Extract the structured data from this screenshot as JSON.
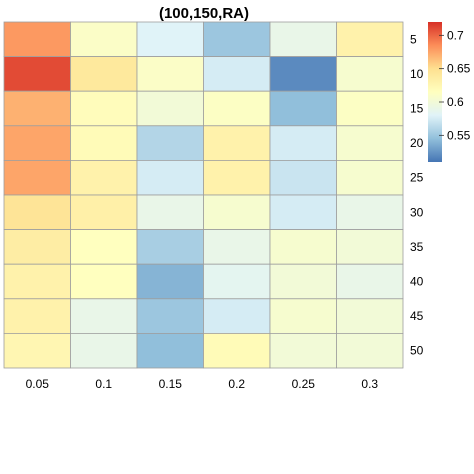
{
  "chart_data": {
    "type": "heatmap",
    "title": "(100,150,RA)",
    "x_categories": [
      "0.05",
      "0.1",
      "0.15",
      "0.2",
      "0.25",
      "0.3"
    ],
    "y_categories": [
      "5",
      "10",
      "15",
      "20",
      "25",
      "30",
      "35",
      "40",
      "45",
      "50"
    ],
    "values": [
      [
        0.68,
        0.61,
        0.58,
        0.55,
        0.59,
        0.63
      ],
      [
        0.71,
        0.64,
        0.61,
        0.575,
        0.52,
        0.605
      ],
      [
        0.67,
        0.618,
        0.6,
        0.612,
        0.545,
        0.612
      ],
      [
        0.675,
        0.62,
        0.56,
        0.63,
        0.575,
        0.605
      ],
      [
        0.675,
        0.63,
        0.575,
        0.63,
        0.57,
        0.605
      ],
      [
        0.645,
        0.632,
        0.59,
        0.605,
        0.575,
        0.59
      ],
      [
        0.635,
        0.615,
        0.555,
        0.59,
        0.605,
        0.6
      ],
      [
        0.63,
        0.615,
        0.54,
        0.585,
        0.6,
        0.59
      ],
      [
        0.63,
        0.59,
        0.55,
        0.575,
        0.605,
        0.6
      ],
      [
        0.625,
        0.59,
        0.545,
        0.62,
        0.6,
        0.6
      ]
    ],
    "colorbar": {
      "range": [
        0.51,
        0.72
      ],
      "ticks": [
        "0.55",
        "0.6",
        "0.65",
        "0.7"
      ],
      "placement": "right",
      "colors": [
        "#4575b4",
        "#91bfdb",
        "#e0f3f8",
        "#ffffbf",
        "#fee090",
        "#fc8d59",
        "#d73027"
      ]
    },
    "grid": true
  }
}
